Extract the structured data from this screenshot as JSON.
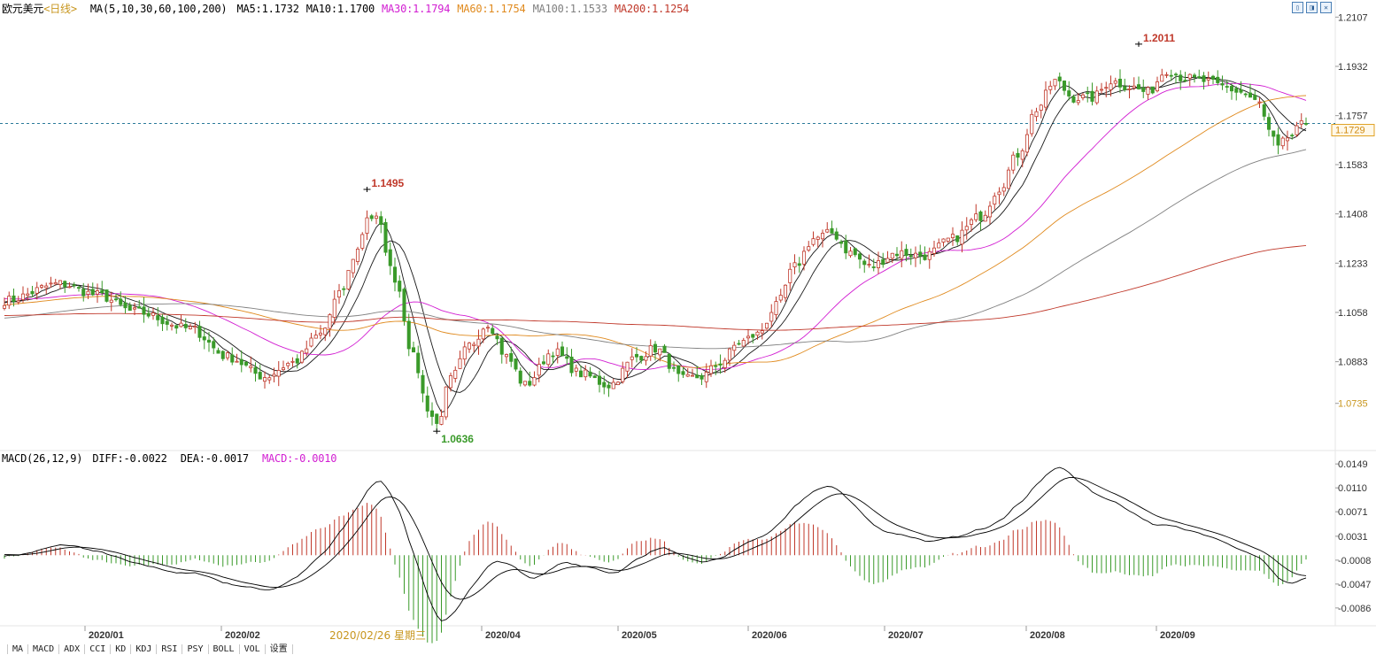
{
  "header": {
    "symbol": "欧元美元",
    "period": "<日线>",
    "ma_label": "MA(5,10,30,60,100,200)",
    "ma_values": [
      {
        "label": "MA5:1.1732",
        "color": "#000000"
      },
      {
        "label": "MA10:1.1700",
        "color": "#000000"
      },
      {
        "label": "MA30:1.1794",
        "color": "#d21ed2"
      },
      {
        "label": "MA60:1.1754",
        "color": "#e08a1e"
      },
      {
        "label": "MA100:1.1533",
        "color": "#808080"
      },
      {
        "label": "MA200:1.1254",
        "color": "#c0392b"
      }
    ]
  },
  "macd_header": {
    "label": "MACD(26,12,9)",
    "diff": "DIFF:-0.0022",
    "dea": "DEA:-0.0017",
    "macd": "MACD:-0.0010"
  },
  "hover_date": "2020/02/26 星期三",
  "bottom_tabs": [
    "MA",
    "MACD",
    "ADX",
    "CCI",
    "KD",
    "KDJ",
    "RSI",
    "PSY",
    "BOLL",
    "VOL",
    "设置"
  ],
  "chart_data": [
    {
      "type": "candlestick",
      "price_axis_ticks": [
        "1.2107",
        "1.1932",
        "1.1757",
        "1.1583",
        "1.1408",
        "1.1233",
        "1.1058",
        "1.0883",
        "1.0735"
      ],
      "price_range": [
        1.058,
        1.213
      ],
      "current_price": "1.1729",
      "annotations": [
        {
          "text": "1.1495",
          "value": 1.1495,
          "kind": "high"
        },
        {
          "text": "1.0636",
          "value": 1.0636,
          "kind": "low"
        },
        {
          "text": "1.2011",
          "value": 1.2011,
          "kind": "high"
        }
      ],
      "x_labels": [
        "2020/01",
        "2020/02",
        "2020/04",
        "2020/05",
        "2020/06",
        "2020/07",
        "2020/08",
        "2020/09"
      ],
      "anchors": [
        [
          0,
          1.11
        ],
        [
          12,
          1.116
        ],
        [
          20,
          1.112
        ],
        [
          28,
          1.106
        ],
        [
          40,
          1.1
        ],
        [
          48,
          1.09
        ],
        [
          56,
          1.083
        ],
        [
          62,
          1.088
        ],
        [
          68,
          1.098
        ],
        [
          72,
          1.112
        ],
        [
          76,
          1.128
        ],
        [
          78,
          1.14
        ],
        [
          80,
          1.139
        ],
        [
          84,
          1.118
        ],
        [
          88,
          1.09
        ],
        [
          91,
          1.072
        ],
        [
          93,
          1.066
        ],
        [
          96,
          1.082
        ],
        [
          100,
          1.094
        ],
        [
          104,
          1.102
        ],
        [
          108,
          1.09
        ],
        [
          112,
          1.08
        ],
        [
          118,
          1.092
        ],
        [
          124,
          1.084
        ],
        [
          130,
          1.08
        ],
        [
          136,
          1.09
        ],
        [
          140,
          1.093
        ],
        [
          146,
          1.082
        ],
        [
          150,
          1.083
        ],
        [
          154,
          1.088
        ],
        [
          158,
          1.095
        ],
        [
          162,
          1.098
        ],
        [
          166,
          1.108
        ],
        [
          170,
          1.122
        ],
        [
          174,
          1.132
        ],
        [
          178,
          1.134
        ],
        [
          182,
          1.127
        ],
        [
          186,
          1.122
        ],
        [
          192,
          1.127
        ],
        [
          198,
          1.126
        ],
        [
          204,
          1.132
        ],
        [
          210,
          1.14
        ],
        [
          214,
          1.15
        ],
        [
          218,
          1.162
        ],
        [
          222,
          1.178
        ],
        [
          226,
          1.188
        ],
        [
          230,
          1.182
        ],
        [
          234,
          1.182
        ],
        [
          238,
          1.188
        ],
        [
          242,
          1.186
        ],
        [
          246,
          1.184
        ],
        [
          250,
          1.192
        ],
        [
          254,
          1.189
        ],
        [
          258,
          1.188
        ],
        [
          262,
          1.186
        ],
        [
          266,
          1.184
        ],
        [
          270,
          1.18
        ],
        [
          272,
          1.17
        ],
        [
          274,
          1.164
        ],
        [
          276,
          1.168
        ],
        [
          280,
          1.173
        ]
      ],
      "series": [
        {
          "name": "MA5",
          "color": "#000000"
        },
        {
          "name": "MA10",
          "color": "#000000"
        },
        {
          "name": "MA30",
          "color": "#d21ed2"
        },
        {
          "name": "MA60",
          "color": "#e08a1e"
        },
        {
          "name": "MA100",
          "color": "#808080"
        },
        {
          "name": "MA200",
          "color": "#c0392b"
        }
      ],
      "up_color": "#c0392b",
      "down_color": "#3a9a2a"
    },
    {
      "type": "macd",
      "axis_ticks": [
        "0.0149",
        "0.0110",
        "0.0071",
        "0.0031",
        "-0.0008",
        "-0.0047",
        "-0.0086"
      ],
      "value_range": [
        -0.0105,
        0.0155
      ],
      "diff_color": "#000000",
      "dea_color": "#000000",
      "pos_color": "#c0392b",
      "neg_color": "#3a9a2a"
    }
  ]
}
